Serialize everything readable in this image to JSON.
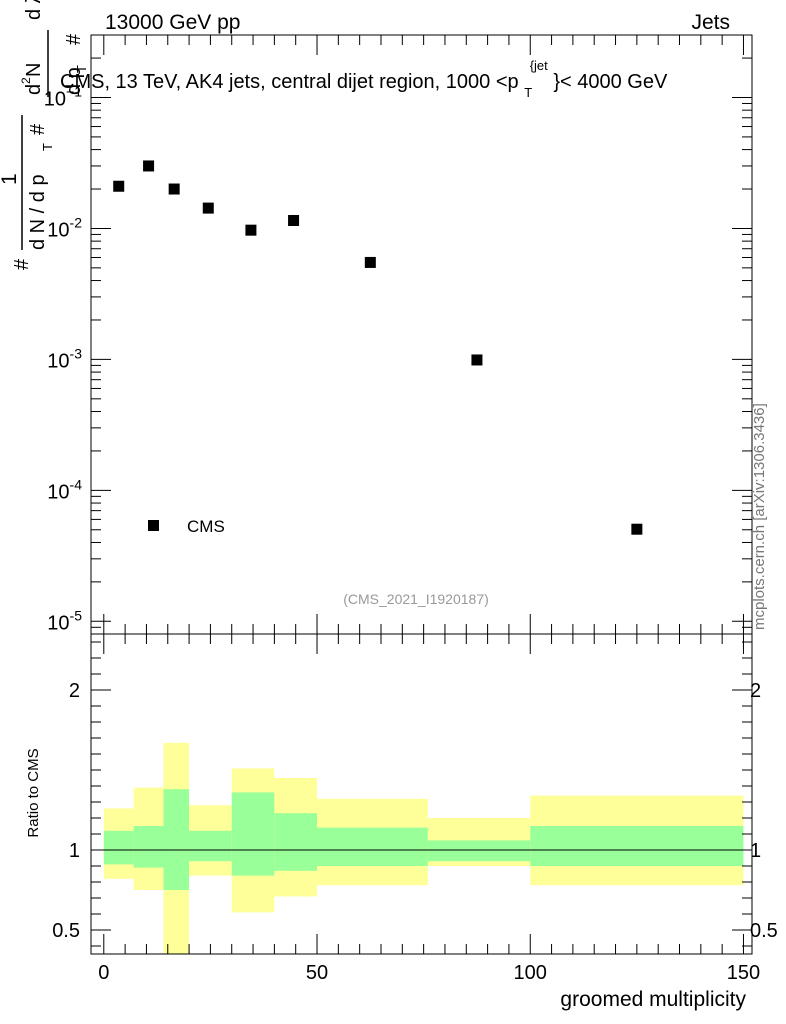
{
  "header": {
    "left": "13000 GeV pp",
    "right": "Jets"
  },
  "chart_data": {
    "type": "scatter",
    "title": "CMS, 13 TeV, AK4 jets, central dijet region, 1000 <p_T^{jet}< 4000 GeV",
    "title_parts": {
      "main": "CMS, 13 TeV, AK4 jets, central dijet region, 1000 <p",
      "sub": "T",
      "sup": "{jet",
      "tail": "}< 4000 GeV"
    },
    "analysis_id": "(CMS_2021_I1920187)",
    "side_label": "mcplots.cern.ch [arXiv:1306.3436]",
    "xlabel": "groomed multiplicity",
    "ylabel_main_parts": [
      "#",
      "1",
      "d N / d p",
      "T",
      "#",
      "d p",
      "T",
      "d",
      "2",
      "N",
      "d λ"
    ],
    "ylabel_ratio": "Ratio to CMS",
    "xlim": [
      -3,
      152
    ],
    "x_ticks": [
      0,
      50,
      100,
      150
    ],
    "ylim_main": [
      8e-06,
      0.3
    ],
    "y_ticks_main": [
      {
        "value": 0.1,
        "mantissa": "10",
        "exp": "−1"
      },
      {
        "value": 0.01,
        "mantissa": "10",
        "exp": "-2"
      },
      {
        "value": 0.001,
        "mantissa": "10",
        "exp": "-3"
      },
      {
        "value": 0.0001,
        "mantissa": "10",
        "exp": "-4"
      },
      {
        "value": 1e-05,
        "mantissa": "10",
        "exp": "-5"
      }
    ],
    "legend": {
      "label": "CMS",
      "position": "bottom-left"
    },
    "series": [
      {
        "name": "CMS",
        "points": [
          {
            "x": 3.5,
            "y": 0.021
          },
          {
            "x": 10.5,
            "y": 0.03
          },
          {
            "x": 16.5,
            "y": 0.02
          },
          {
            "x": 24.5,
            "y": 0.0143
          },
          {
            "x": 34.5,
            "y": 0.0097
          },
          {
            "x": 44.5,
            "y": 0.0115
          },
          {
            "x": 62.5,
            "y": 0.0055
          },
          {
            "x": 87.5,
            "y": 0.00099
          },
          {
            "x": 125,
            "y": 5.05e-05
          }
        ]
      }
    ],
    "ratio": {
      "ylim": [
        0.35,
        2.35
      ],
      "ticks": [
        0.5,
        1,
        2
      ],
      "tick_labels": [
        "0.5",
        "1",
        "2"
      ],
      "colors": {
        "inner": "#99ff99",
        "outer": "#ffff99"
      },
      "bands": [
        {
          "x0": 0,
          "x1": 7,
          "inner": [
            0.91,
            1.12
          ],
          "outer": [
            0.82,
            1.26
          ]
        },
        {
          "x0": 7,
          "x1": 14,
          "inner": [
            0.89,
            1.15
          ],
          "outer": [
            0.75,
            1.39
          ]
        },
        {
          "x0": 14,
          "x1": 20,
          "inner": [
            0.75,
            1.38
          ],
          "outer": [
            0.35,
            1.67
          ]
        },
        {
          "x0": 20,
          "x1": 30,
          "inner": [
            0.93,
            1.12
          ],
          "outer": [
            0.84,
            1.28
          ]
        },
        {
          "x0": 30,
          "x1": 40,
          "inner": [
            0.84,
            1.36
          ],
          "outer": [
            0.61,
            1.51
          ]
        },
        {
          "x0": 40,
          "x1": 50,
          "inner": [
            0.87,
            1.23
          ],
          "outer": [
            0.71,
            1.45
          ]
        },
        {
          "x0": 50,
          "x1": 76,
          "inner": [
            0.9,
            1.14
          ],
          "outer": [
            0.78,
            1.32
          ]
        },
        {
          "x0": 76,
          "x1": 100,
          "inner": [
            0.93,
            1.06
          ],
          "outer": [
            0.9,
            1.2
          ]
        },
        {
          "x0": 100,
          "x1": 150,
          "inner": [
            0.9,
            1.15
          ],
          "outer": [
            0.78,
            1.34
          ]
        }
      ]
    }
  }
}
